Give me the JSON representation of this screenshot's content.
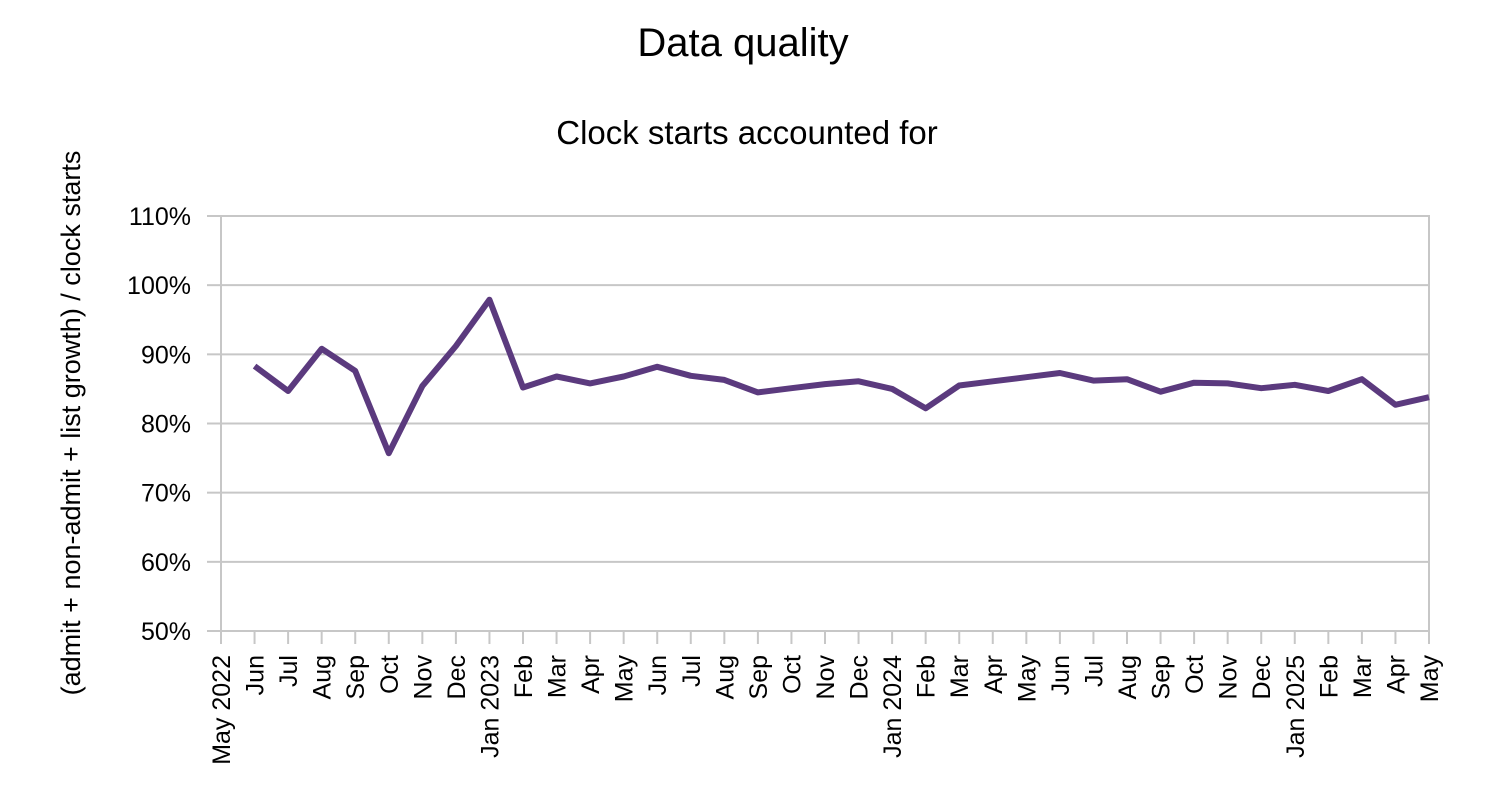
{
  "chart_data": {
    "type": "line",
    "title": "Data quality",
    "subtitle": "Clock starts accounted for",
    "xlabel": "",
    "ylabel": "(admit + non-admit + list growth) / clock starts",
    "ylim": [
      50,
      110
    ],
    "ytick_step": 10,
    "yticks": [
      "50%",
      "60%",
      "70%",
      "80%",
      "90%",
      "100%",
      "110%"
    ],
    "grid": true,
    "legend": "none",
    "categories": [
      "May 2022",
      "Jun",
      "Jul",
      "Aug",
      "Sep",
      "Oct",
      "Nov",
      "Dec",
      "Jan 2023",
      "Feb",
      "Mar",
      "Apr",
      "May",
      "Jun",
      "Jul",
      "Aug",
      "Sep",
      "Oct",
      "Nov",
      "Dec",
      "Jan 2024",
      "Feb",
      "Mar",
      "Apr",
      "May",
      "Jun",
      "Jul",
      "Aug",
      "Sep",
      "Oct",
      "Nov",
      "Dec",
      "Jan 2025",
      "Feb",
      "Mar",
      "Apr",
      "May"
    ],
    "series": [
      {
        "color": "#5b3a7e",
        "values": [
          null,
          88.3,
          84.7,
          90.8,
          87.6,
          75.7,
          85.4,
          91.2,
          97.9,
          85.2,
          86.8,
          85.8,
          86.8,
          88.2,
          86.9,
          86.3,
          84.5,
          85.1,
          85.7,
          86.1,
          85.0,
          82.2,
          85.5,
          86.1,
          86.7,
          87.3,
          86.2,
          86.4,
          84.6,
          85.9,
          85.8,
          85.1,
          85.6,
          84.7,
          86.4,
          82.7,
          83.8
        ]
      }
    ]
  }
}
